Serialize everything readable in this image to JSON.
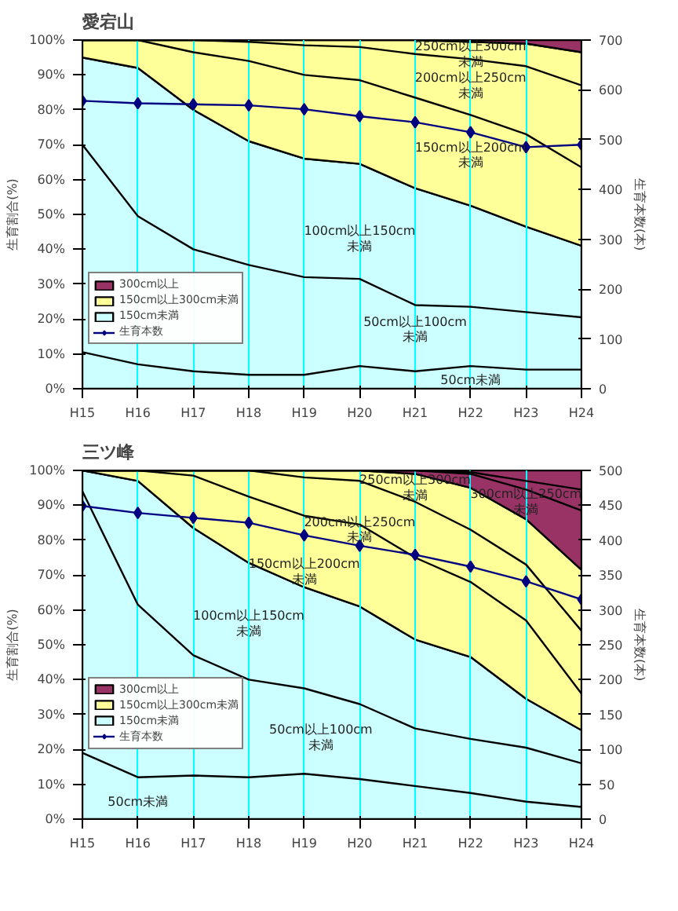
{
  "chart_data": [
    {
      "type": "area",
      "title": "愛宕山",
      "ylabel": "生育割合(%)",
      "y2label": "生育本数(本)",
      "stacked": true,
      "grid": "x",
      "legend": "bottom left",
      "categories": [
        "H15",
        "H16",
        "H17",
        "H18",
        "H19",
        "H20",
        "H21",
        "H22",
        "H23",
        "H24"
      ],
      "ylim": [
        0,
        100
      ],
      "yticks": [
        {
          "value": 0,
          "label": "0%"
        },
        {
          "value": 10,
          "label": "10%"
        },
        {
          "value": 20,
          "label": "20%"
        },
        {
          "value": 30,
          "label": "30%"
        },
        {
          "value": 40,
          "label": "40%"
        },
        {
          "value": 50,
          "label": "50%"
        },
        {
          "value": 60,
          "label": "60%"
        },
        {
          "value": 70,
          "label": "70%"
        },
        {
          "value": 80,
          "label": "80%"
        },
        {
          "value": 90,
          "label": "90%"
        },
        {
          "value": 100,
          "label": "100%"
        }
      ],
      "y2lim": [
        0,
        700
      ],
      "y2ticks": [
        0,
        100,
        200,
        300,
        400,
        500,
        600,
        700
      ],
      "series": [
        {
          "name": "150cm未満",
          "color": "#ccffff",
          "values": [
            95,
            92,
            80,
            71,
            66,
            64.5,
            57.5,
            52.5,
            46.5,
            41
          ]
        },
        {
          "name": "150cm以上300cm未満",
          "color": "#ffff99",
          "values": [
            5,
            8,
            20,
            29,
            34,
            35.5,
            42.5,
            47,
            52.5,
            55.5
          ]
        },
        {
          "name": "300cm以上",
          "color": "#993366",
          "values": [
            0,
            0,
            0,
            0,
            0,
            0,
            0,
            0.5,
            1,
            3.5
          ]
        },
        {
          "type": "line",
          "color": "#000000",
          "values": [
            10.5,
            7,
            5,
            4,
            4,
            6.5,
            5,
            6.5,
            5.5,
            5.5
          ]
        },
        {
          "type": "line",
          "color": "#000000",
          "values": [
            70,
            49.5,
            40,
            35.5,
            32,
            31.5,
            24,
            23.5,
            22,
            20.5
          ]
        },
        {
          "type": "line",
          "color": "#000000",
          "values": [
            100,
            100,
            96.5,
            94,
            90,
            88.5,
            83.5,
            78.5,
            73,
            63.5
          ]
        },
        {
          "type": "line",
          "color": "#000000",
          "values": [
            100,
            100,
            100,
            99.5,
            98.5,
            98,
            96,
            94.5,
            92.5,
            87
          ]
        },
        {
          "name": "生育本数",
          "type": "line",
          "axis": "y2",
          "color": "#000080",
          "marker": "diamond",
          "values": [
            578,
            573,
            571,
            569,
            561,
            547,
            535,
            515,
            485,
            490
          ]
        }
      ],
      "annotations": [
        "250cm以上300cm未満",
        "200cm以上250cm未満",
        "150cm以上200cm未満",
        "100cm以上150cm未満",
        "50cm以上100cm未満",
        "50cm未満"
      ]
    },
    {
      "type": "area",
      "title": "三ツ峰",
      "ylabel": "生育割合(%)",
      "y2label": "生育本数(本)",
      "stacked": true,
      "grid": "x",
      "legend": "left",
      "categories": [
        "H15",
        "H16",
        "H17",
        "H18",
        "H19",
        "H20",
        "H21",
        "H22",
        "H23",
        "H24"
      ],
      "ylim": [
        0,
        100
      ],
      "yticks": [
        {
          "value": 0,
          "label": "0%"
        },
        {
          "value": 10,
          "label": "10%"
        },
        {
          "value": 20,
          "label": "20%"
        },
        {
          "value": 30,
          "label": "30%"
        },
        {
          "value": 40,
          "label": "40%"
        },
        {
          "value": 50,
          "label": "50%"
        },
        {
          "value": 60,
          "label": "60%"
        },
        {
          "value": 70,
          "label": "70%"
        },
        {
          "value": 80,
          "label": "80%"
        },
        {
          "value": 90,
          "label": "90%"
        },
        {
          "value": 100,
          "label": "100%"
        }
      ],
      "y2lim": [
        0,
        500
      ],
      "y2ticks": [
        0,
        50,
        100,
        150,
        200,
        250,
        300,
        350,
        400,
        450,
        500
      ],
      "series": [
        {
          "name": "150cm未満",
          "color": "#ccffff",
          "values": [
            100,
            97,
            83.5,
            73.5,
            66.5,
            61,
            51.5,
            46.5,
            34.5,
            25.5
          ]
        },
        {
          "name": "150cm以上300cm未満",
          "color": "#ffff99",
          "values": [
            0,
            3,
            16.5,
            26.5,
            33.5,
            39,
            47.5,
            48.5,
            51.5,
            46
          ]
        },
        {
          "name": "300cm以上",
          "color": "#993366",
          "values": [
            0,
            0,
            0,
            0,
            0,
            0,
            1,
            5,
            14,
            28.5
          ]
        },
        {
          "type": "line",
          "color": "#000000",
          "values": [
            19,
            12,
            12.5,
            12,
            13,
            11.5,
            9.5,
            7.5,
            5,
            3.5
          ]
        },
        {
          "type": "line",
          "color": "#000000",
          "values": [
            94,
            61.5,
            47,
            40,
            37.5,
            33,
            26,
            23,
            20.5,
            16
          ]
        },
        {
          "type": "line",
          "color": "#000000",
          "values": [
            100,
            100,
            98.5,
            92.5,
            87,
            84.5,
            75,
            68,
            57,
            36
          ]
        },
        {
          "type": "line",
          "color": "#000000",
          "values": [
            100,
            100,
            100,
            100,
            98,
            97,
            91,
            83,
            73,
            54
          ]
        },
        {
          "type": "line",
          "color": "#000000",
          "values": [
            100,
            100,
            100,
            100,
            100,
            100,
            100,
            99,
            94.5,
            88.5
          ]
        },
        {
          "type": "line",
          "color": "#000000",
          "values": [
            100,
            100,
            100,
            100,
            100,
            100,
            100,
            99.5,
            97,
            94.5
          ]
        },
        {
          "name": "生育本数",
          "type": "line",
          "axis": "y2",
          "color": "#000080",
          "marker": "diamond",
          "values": [
            449,
            439,
            432,
            425,
            407,
            392,
            379,
            362,
            341,
            315
          ]
        }
      ],
      "annotations": [
        "250cm以上300cm未満",
        "300cm以上250cm未満",
        "200cm以上250cm未満",
        "150cm以上200cm未満",
        "100cm以上150cm未満",
        "50cm以上100cm未満",
        "50cm未満"
      ]
    }
  ]
}
